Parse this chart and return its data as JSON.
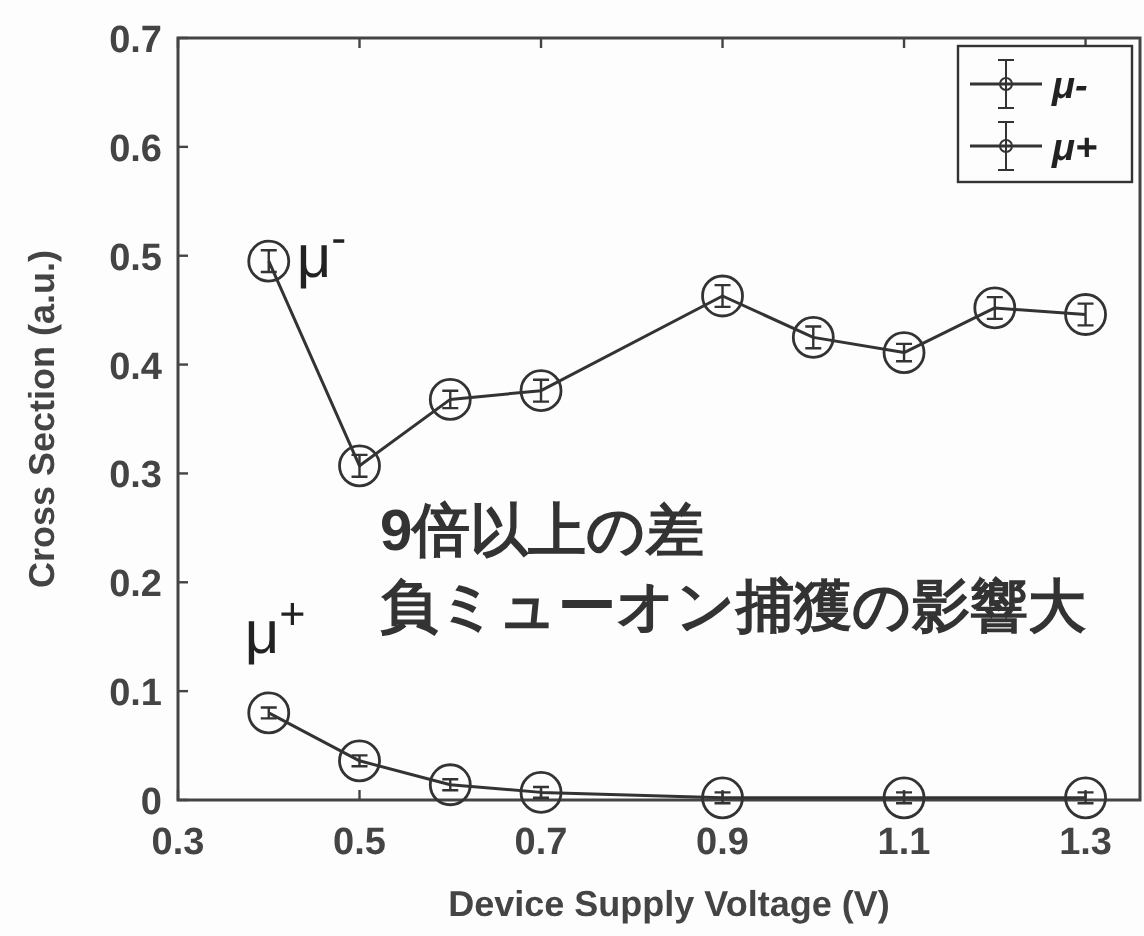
{
  "chart_data": {
    "type": "line",
    "xlabel": "Device Supply Voltage (V)",
    "ylabel": "Cross Section (a.u.)",
    "xlim": [
      0.3,
      1.36
    ],
    "xticks": [
      0.3,
      0.5,
      0.7,
      0.9,
      1.1,
      1.3
    ],
    "ylim": [
      0,
      0.7
    ],
    "yticks": [
      0,
      0.1,
      0.2,
      0.3,
      0.4,
      0.5,
      0.6,
      0.7
    ],
    "series": [
      {
        "name": "μ-",
        "color": "#333333",
        "x": [
          0.4,
          0.5,
          0.6,
          0.7,
          0.9,
          1.0,
          1.1,
          1.2,
          1.3
        ],
        "values": [
          0.495,
          0.307,
          0.368,
          0.376,
          0.463,
          0.425,
          0.411,
          0.452,
          0.446
        ],
        "errors": [
          0.01,
          0.01,
          0.008,
          0.01,
          0.01,
          0.01,
          0.008,
          0.01,
          0.01
        ]
      },
      {
        "name": "μ+",
        "color": "#333333",
        "x": [
          0.4,
          0.5,
          0.6,
          0.7,
          0.9,
          1.1,
          1.3
        ],
        "values": [
          0.08,
          0.036,
          0.014,
          0.007,
          0.002,
          0.002,
          0.002
        ],
        "errors": [
          0.005,
          0.005,
          0.005,
          0.005,
          0.005,
          0.005,
          0.005
        ]
      }
    ],
    "marker": "circle",
    "line_style": "solid",
    "legend": "top right",
    "annotations": [
      {
        "text": "μ$^{-}$",
        "x": 0.4,
        "y": 0.495
      },
      {
        "text": "μ$^{+}$",
        "x": 0.4,
        "y": 0.08
      },
      "9倍以上の差",
      "負ミューオン捕獲の影響大"
    ]
  }
}
